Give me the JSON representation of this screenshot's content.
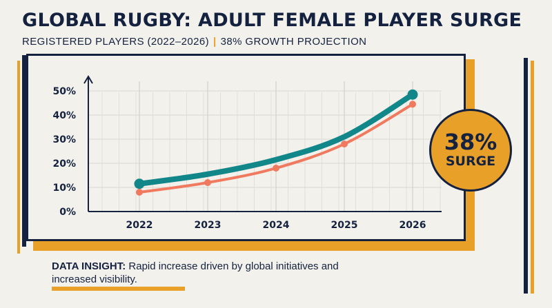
{
  "header": {
    "title": "GLOBAL RUGBY: ADULT FEMALE PLAYER SURGE",
    "subtitle_left": "REGISTERED PLAYERS (2022–2026)",
    "subtitle_sep": "|",
    "subtitle_right": "38% GROWTH PROJECTION"
  },
  "badge": {
    "value": "38%",
    "label": "SURGE"
  },
  "insight": {
    "label": "DATA INSIGHT:",
    "text": "Rapid increase driven by global initiatives and increased visibility."
  },
  "colors": {
    "navy": "#14223f",
    "orange": "#e8a029",
    "teal": "#12878a",
    "coral": "#ef7a5f",
    "background": "#f3f1ec"
  },
  "chart_data": {
    "type": "line",
    "x": [
      "2022",
      "2023",
      "2024",
      "2025",
      "2026"
    ],
    "ylim": [
      0,
      50
    ],
    "yticks": [
      "0%",
      "10%",
      "20%",
      "30%",
      "40%",
      "50%"
    ],
    "ytick_values": [
      0,
      10,
      20,
      30,
      40,
      50
    ],
    "grid": true,
    "legend": "none",
    "series": [
      {
        "color": "#12878a",
        "values": [
          11.5,
          15.5,
          21.5,
          31,
          48.5
        ]
      },
      {
        "color": "#ef7a5f",
        "values": [
          8,
          12,
          18,
          28,
          44.5
        ]
      }
    ]
  }
}
